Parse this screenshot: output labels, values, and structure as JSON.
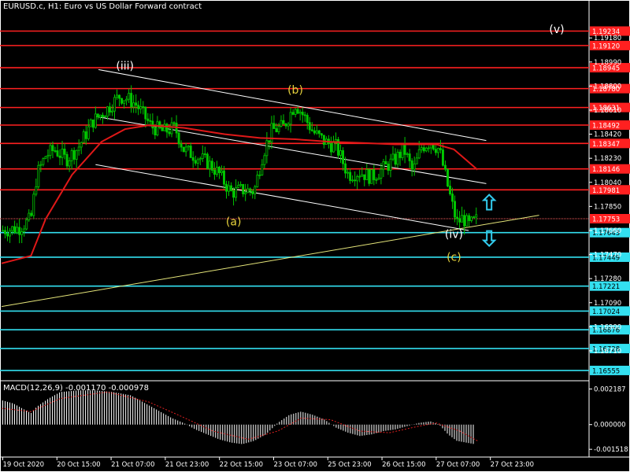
{
  "header": {
    "symbol": "EURUSD.c, H1:  Euro vs US Dollar Forward contract",
    "macd_label": "MACD(12,26,9) -0.001170 -0.000978"
  },
  "colors": {
    "background": "#000000",
    "candle": "#00c800",
    "resistance": "#ff2020",
    "support": "#33e0f0",
    "ma": "#e01818",
    "channel": "#ffffff",
    "trend": "#e6e67a",
    "wave_yellow": "#e6d23c",
    "wave_white": "#ffffff",
    "arrow": "#33ccee",
    "macd_bar": "#ffffff",
    "macd_signal": "#e02020"
  },
  "chart_data": [
    {
      "type": "candlestick",
      "title": "EURUSD.c, H1:  Euro vs US Dollar Forward contract",
      "ylim": [
        1.1648,
        1.1938
      ],
      "x_ticks": [
        "19 Oct 2020",
        "20 Oct 15:00",
        "21 Oct 07:00",
        "21 Oct 23:00",
        "22 Oct 15:00",
        "23 Oct 07:00",
        "25 Oct 23:00",
        "26 Oct 15:00",
        "27 Oct 07:00",
        "27 Oct 23:00"
      ],
      "y_ticks": [
        1.1918,
        1.1899,
        1.188,
        1.1861,
        1.1842,
        1.1823,
        1.1804,
        1.1785,
        1.1766,
        1.1747,
        1.1728,
        1.1709,
        1.169,
        1.1671
      ],
      "y_tick_labels": [
        "1.19180",
        "1.18990",
        "1.18800",
        "1.18610",
        "1.18420",
        "1.18230",
        "1.18040",
        "1.17850",
        "1.17660",
        "1.17470",
        "1.17280",
        "1.17090",
        "1.16900",
        "1.16710"
      ],
      "current_price": 1.17753,
      "current_price_label": "1.17753",
      "resistance_levels": [
        {
          "value": 1.19234,
          "label": "1.19234"
        },
        {
          "value": 1.1912,
          "label": "1.19120"
        },
        {
          "value": 1.18945,
          "label": "1.18945"
        },
        {
          "value": 1.1878,
          "label": "1.18780"
        },
        {
          "value": 1.18631,
          "label": "1.18631"
        },
        {
          "value": 1.18492,
          "label": "1.18492"
        },
        {
          "value": 1.18347,
          "label": "1.18347"
        },
        {
          "value": 1.18146,
          "label": "1.18146"
        },
        {
          "value": 1.17981,
          "label": "1.17981"
        }
      ],
      "support_levels": [
        {
          "value": 1.17643,
          "label": "1.17643"
        },
        {
          "value": 1.17449,
          "label": "1.17449"
        },
        {
          "value": 1.17221,
          "label": "1.17221"
        },
        {
          "value": 1.17024,
          "label": "1.17024"
        },
        {
          "value": 1.16876,
          "label": "1.16876"
        },
        {
          "value": 1.16728,
          "label": "1.16728"
        },
        {
          "value": 1.16555,
          "label": "1.16555"
        }
      ],
      "close_path": [
        [
          0,
          1.1766
        ],
        [
          0.03,
          1.1768
        ],
        [
          0.05,
          1.1775
        ],
        [
          0.06,
          1.181
        ],
        [
          0.075,
          1.1825
        ],
        [
          0.09,
          1.183
        ],
        [
          0.11,
          1.1822
        ],
        [
          0.13,
          1.1831
        ],
        [
          0.155,
          1.1852
        ],
        [
          0.18,
          1.1862
        ],
        [
          0.2,
          1.1872
        ],
        [
          0.215,
          1.187
        ],
        [
          0.23,
          1.1865
        ],
        [
          0.255,
          1.1848
        ],
        [
          0.275,
          1.1844
        ],
        [
          0.295,
          1.1847
        ],
        [
          0.31,
          1.183
        ],
        [
          0.325,
          1.1826
        ],
        [
          0.35,
          1.182
        ],
        [
          0.37,
          1.1811
        ],
        [
          0.39,
          1.1796
        ],
        [
          0.41,
          1.1798
        ],
        [
          0.43,
          1.1797
        ],
        [
          0.445,
          1.1827
        ],
        [
          0.46,
          1.1845
        ],
        [
          0.48,
          1.1848
        ],
        [
          0.5,
          1.1866
        ],
        [
          0.515,
          1.1856
        ],
        [
          0.53,
          1.1844
        ],
        [
          0.55,
          1.1836
        ],
        [
          0.57,
          1.1832
        ],
        [
          0.59,
          1.181
        ],
        [
          0.61,
          1.1812
        ],
        [
          0.63,
          1.1808
        ],
        [
          0.65,
          1.1815
        ],
        [
          0.67,
          1.1822
        ],
        [
          0.685,
          1.183
        ],
        [
          0.7,
          1.1812
        ],
        [
          0.715,
          1.1832
        ],
        [
          0.73,
          1.1836
        ],
        [
          0.745,
          1.183
        ],
        [
          0.755,
          1.181
        ],
        [
          0.765,
          1.179
        ],
        [
          0.775,
          1.1772
        ],
        [
          0.785,
          1.1776
        ],
        [
          0.795,
          1.177
        ],
        [
          0.81,
          1.1775
        ]
      ],
      "ma_path": [
        [
          0,
          1.174
        ],
        [
          0.05,
          1.1746
        ],
        [
          0.075,
          1.1775
        ],
        [
          0.12,
          1.181
        ],
        [
          0.17,
          1.1836
        ],
        [
          0.21,
          1.1846
        ],
        [
          0.25,
          1.1849
        ],
        [
          0.31,
          1.1847
        ],
        [
          0.38,
          1.1842
        ],
        [
          0.44,
          1.1839
        ],
        [
          0.5,
          1.1838
        ],
        [
          0.56,
          1.1836
        ],
        [
          0.62,
          1.1835
        ],
        [
          0.67,
          1.1834
        ],
        [
          0.7,
          1.1834
        ],
        [
          0.74,
          1.1834
        ],
        [
          0.77,
          1.183
        ],
        [
          0.8,
          1.1818
        ],
        [
          0.81,
          1.1814
        ]
      ],
      "channel_upper": [
        [
          0.165,
          1.1893
        ],
        [
          0.825,
          1.1837
        ]
      ],
      "channel_mid": [
        [
          0.16,
          1.1856
        ],
        [
          0.825,
          1.1803
        ]
      ],
      "channel_lower": [
        [
          0.16,
          1.1818
        ],
        [
          0.795,
          1.1766
        ]
      ],
      "trend_line": [
        [
          0,
          1.1706
        ],
        [
          0.915,
          1.1778
        ]
      ],
      "wave_labels": [
        {
          "label": "(iii)",
          "x": 0.21,
          "y": 1.1893,
          "color": "white"
        },
        {
          "label": "(b)",
          "x": 0.5,
          "y": 1.1874,
          "color": "yellow"
        },
        {
          "label": "(a)",
          "x": 0.395,
          "y": 1.177,
          "color": "yellow"
        },
        {
          "label": "(iv)",
          "x": 0.77,
          "y": 1.176,
          "color": "white"
        },
        {
          "label": "(c)",
          "x": 0.77,
          "y": 1.1742,
          "color": "yellow"
        },
        {
          "label": "(v)",
          "x": 0.945,
          "y": 1.1922,
          "color": "white"
        }
      ],
      "arrows": [
        {
          "direction": "up",
          "x": 0.83,
          "y": 1.1788
        },
        {
          "direction": "down",
          "x": 0.83,
          "y": 1.176
        }
      ]
    },
    {
      "type": "bar",
      "title": "MACD(12,26,9) -0.001170 -0.000978",
      "ylim": [
        -0.0018,
        0.0025
      ],
      "y_ticks": [
        0.002187,
        0.0,
        -0.001518
      ],
      "y_tick_labels": [
        "0.002187",
        "0.000000",
        "-0.001518"
      ],
      "histogram": [
        [
          0.0,
          0.0015
        ],
        [
          0.02,
          0.0013
        ],
        [
          0.04,
          0.0009
        ],
        [
          0.05,
          0.0007
        ],
        [
          0.06,
          0.0011
        ],
        [
          0.08,
          0.0016
        ],
        [
          0.1,
          0.002
        ],
        [
          0.13,
          0.0021
        ],
        [
          0.16,
          0.0021
        ],
        [
          0.19,
          0.002
        ],
        [
          0.22,
          0.0018
        ],
        [
          0.25,
          0.0012
        ],
        [
          0.27,
          0.0008
        ],
        [
          0.29,
          0.0004
        ],
        [
          0.31,
          0.0001
        ],
        [
          0.33,
          -0.0003
        ],
        [
          0.35,
          -0.0006
        ],
        [
          0.37,
          -0.0009
        ],
        [
          0.39,
          -0.0011
        ],
        [
          0.41,
          -0.0012
        ],
        [
          0.43,
          -0.001
        ],
        [
          0.45,
          -0.0006
        ],
        [
          0.47,
          0.0001
        ],
        [
          0.49,
          0.0006
        ],
        [
          0.51,
          0.0008
        ],
        [
          0.53,
          0.0006
        ],
        [
          0.55,
          0.0003
        ],
        [
          0.57,
          -0.0002
        ],
        [
          0.59,
          -0.0005
        ],
        [
          0.61,
          -0.0007
        ],
        [
          0.63,
          -0.0006
        ],
        [
          0.65,
          -0.0004
        ],
        [
          0.67,
          -0.0003
        ],
        [
          0.69,
          -0.0001
        ],
        [
          0.71,
          0.0001
        ],
        [
          0.73,
          0.0002
        ],
        [
          0.745,
          0.0
        ],
        [
          0.76,
          -0.0006
        ],
        [
          0.775,
          -0.001
        ],
        [
          0.79,
          -0.0011
        ],
        [
          0.805,
          -0.0012
        ]
      ],
      "signal": [
        [
          0.0,
          0.001
        ],
        [
          0.05,
          0.0008
        ],
        [
          0.1,
          0.0016
        ],
        [
          0.18,
          0.002
        ],
        [
          0.25,
          0.0014
        ],
        [
          0.3,
          0.0006
        ],
        [
          0.36,
          -0.0004
        ],
        [
          0.42,
          -0.0009
        ],
        [
          0.47,
          -0.0004
        ],
        [
          0.51,
          0.0004
        ],
        [
          0.56,
          0.0003
        ],
        [
          0.61,
          -0.0004
        ],
        [
          0.66,
          -0.0005
        ],
        [
          0.71,
          -0.0001
        ],
        [
          0.74,
          0.0001
        ],
        [
          0.78,
          -0.0004
        ],
        [
          0.81,
          -0.001
        ]
      ]
    }
  ]
}
